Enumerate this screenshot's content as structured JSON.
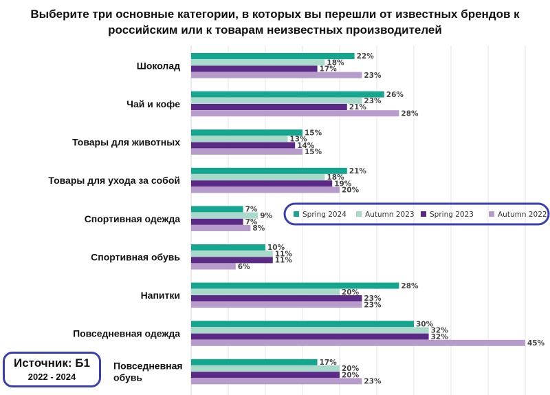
{
  "title_lines": [
    "Выберите три основные категории, в которых вы перешли от известных брендов к",
    "российским или к товарам неизвестных производителей"
  ],
  "source": {
    "line1": "Источник: Б1",
    "line2": "2022 - 2024"
  },
  "chart_data": {
    "type": "bar",
    "orientation": "horizontal",
    "unit": "%",
    "grid": true,
    "legend_placement": "right, inside plot",
    "categories": [
      [
        "Шоколад"
      ],
      [
        "Чай и кофе"
      ],
      [
        "Товары для животных"
      ],
      [
        "Товары для ухода за собой"
      ],
      [
        "Спортивная одежда"
      ],
      [
        "Спортивная обувь"
      ],
      [
        "Напитки"
      ],
      [
        "Повседневная одежда"
      ],
      [
        "Повседневная",
        "обувь"
      ]
    ],
    "series": [
      {
        "name": "Spring 2024",
        "color": "#16a58f",
        "values": [
          22,
          26,
          15,
          21,
          7,
          10,
          28,
          30,
          17
        ]
      },
      {
        "name": "Autumn 2023",
        "color": "#a8d9cb",
        "values": [
          18,
          23,
          13,
          18,
          9,
          11,
          20,
          32,
          20
        ]
      },
      {
        "name": "Spring 2023",
        "color": "#5b2a86",
        "values": [
          17,
          21,
          14,
          19,
          7,
          11,
          23,
          32,
          20
        ]
      },
      {
        "name": "Autumn 2022",
        "color": "#b79ccb",
        "values": [
          23,
          28,
          15,
          20,
          8,
          6,
          23,
          45,
          23
        ]
      }
    ]
  }
}
